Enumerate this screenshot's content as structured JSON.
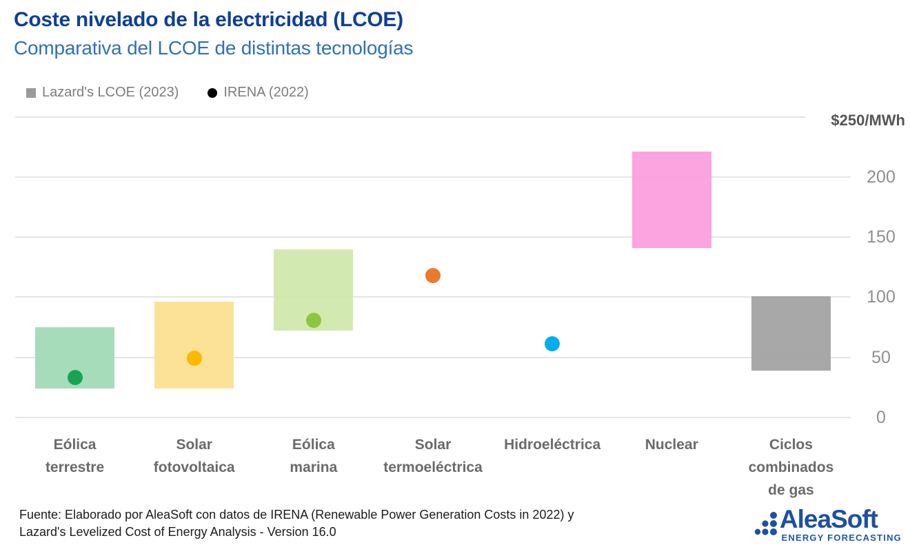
{
  "header": {
    "title": "Coste nivelado de la electricidad (LCOE)",
    "subtitle": "Comparativa del LCOE de distintas tecnologías",
    "title_color": "#0d4097",
    "subtitle_color": "#3070b8"
  },
  "legend": [
    {
      "label": "Lazard's LCOE (2023)",
      "marker": "square",
      "color": "#9b9b9b"
    },
    {
      "label": "IRENA (2022)",
      "marker": "circle",
      "color": "#000000"
    }
  ],
  "chart_data": {
    "type": "bar",
    "subtype": "range-bars-with-point-markers",
    "title": "Coste nivelado de la electricidad (LCOE)",
    "xlabel": "",
    "ylabel": "$/MWh",
    "ylim": [
      0,
      250
    ],
    "grid": true,
    "legend_position": "top-left",
    "axis": {
      "max_label": "$250/MWh",
      "gridlines": [
        250,
        200,
        150,
        100,
        50,
        0
      ],
      "tick_labels": [
        "200",
        "150",
        "100",
        "50",
        "0"
      ],
      "tick_values": [
        200,
        150,
        100,
        50,
        0
      ]
    },
    "series": [
      {
        "name": "Lazard's LCOE (2023)",
        "type": "range"
      },
      {
        "name": "IRENA (2022)",
        "type": "point"
      }
    ],
    "categories": [
      {
        "label": "Eólica terrestre",
        "label_lines": [
          "Eólica",
          "terrestre"
        ],
        "lazard_range": [
          24,
          75
        ],
        "bar_color": "#9fd9b4",
        "irena_value": 33,
        "dot_color": "#17a554"
      },
      {
        "label": "Solar fotovoltaica",
        "label_lines": [
          "Solar",
          "fotovoltaica"
        ],
        "lazard_range": [
          24,
          96
        ],
        "bar_color": "#fbdf8e",
        "irena_value": 49,
        "dot_color": "#fcb900"
      },
      {
        "label": "Eólica marina",
        "label_lines": [
          "Eólica",
          "marina"
        ],
        "lazard_range": [
          72,
          140
        ],
        "bar_color": "#cee8ab",
        "irena_value": 81,
        "dot_color": "#8cc63f"
      },
      {
        "label": "Solar termoeléctrica",
        "label_lines": [
          "Solar",
          "termoeléctrica"
        ],
        "lazard_range": null,
        "bar_color": null,
        "irena_value": 118,
        "dot_color": "#ea7a2e"
      },
      {
        "label": "Hidroeléctrica",
        "label_lines": [
          "Hidroeléctrica"
        ],
        "lazard_range": null,
        "bar_color": null,
        "irena_value": 61,
        "dot_color": "#00aeef"
      },
      {
        "label": "Nuclear",
        "label_lines": [
          "Nuclear"
        ],
        "lazard_range": [
          141,
          221
        ],
        "bar_color": "#fb9cdc",
        "irena_value": null,
        "dot_color": null
      },
      {
        "label": "Ciclos combinados de gas",
        "label_lines": [
          "Ciclos",
          "combinados",
          "de gas"
        ],
        "lazard_range": [
          39,
          101
        ],
        "bar_color": "#a1a1a1",
        "irena_value": null,
        "dot_color": null
      }
    ]
  },
  "footer": {
    "source_line1": "Fuente: Elaborado por AleaSoft con datos de IRENA (Renewable Power Generation Costs in 2022) y",
    "source_line2": "Lazard's Levelized Cost of Energy Analysis - Version 16.0"
  },
  "logo": {
    "name": "AleaSoft",
    "tagline": "ENERGY FORECASTING",
    "color": "#1d4fa3"
  }
}
